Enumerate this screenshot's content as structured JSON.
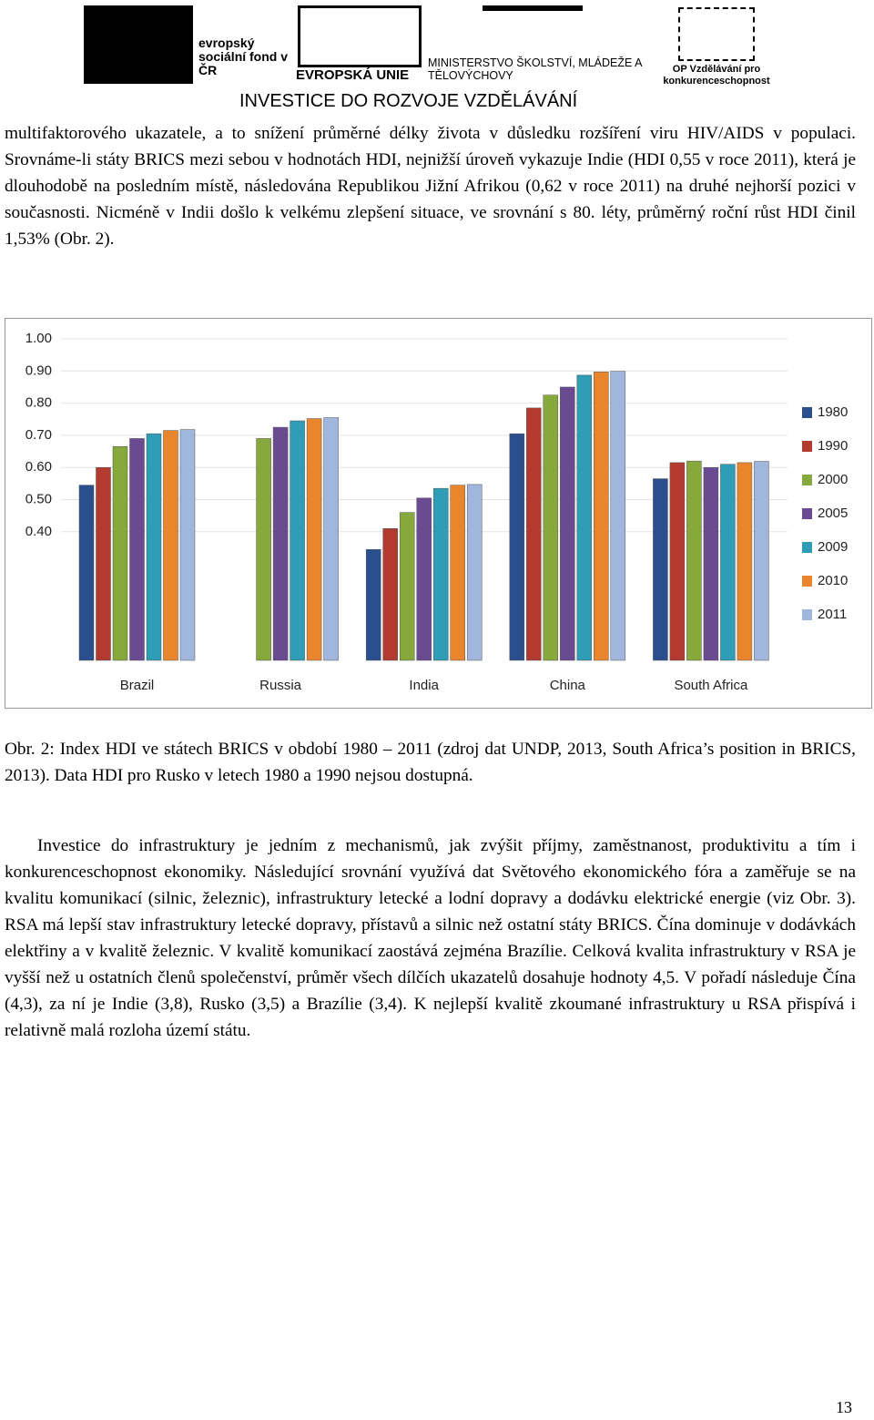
{
  "header": {
    "esf_name": "evropský sociální fond v ČR",
    "eu_name": "EVROPSKÁ UNIE",
    "msmt_name": "MINISTERSTVO ŠKOLSTVÍ, MLÁDEŽE A TĚLOVÝCHOVY",
    "op_name": "OP Vzdělávání pro konkurenceschopnost",
    "slogan": "INVESTICE DO ROZVOJE VZDĚLÁVÁNÍ"
  },
  "paragraphs_before": [
    "multifaktorového ukazatele, a to snížení průměrné délky života v důsledku rozšíření viru HIV/AIDS v populaci. Srovnáme-li státy BRICS mezi sebou v hodnotách HDI, nejnižší úroveň vykazuje Indie (HDI 0,55 v roce 2011), která je dlouhodobě na posledním místě, následována Republikou Jižní Afrikou (0,62 v roce 2011) na druhé nejhorší pozici v současnosti. Nicméně v Indii došlo k velkému zlepšení situace, ve srovnání s 80. léty, průměrný roční růst HDI činil 1,53% (Obr. 2)."
  ],
  "chart_data": {
    "type": "bar",
    "categories": [
      "Brazil",
      "Russia",
      "India",
      "China",
      "South Africa"
    ],
    "series": [
      {
        "name": "1980",
        "color": "#2b4f8c",
        "values": [
          0.545,
          null,
          0.345,
          0.705,
          0.565
        ]
      },
      {
        "name": "1990",
        "color": "#b23a2f",
        "values": [
          0.6,
          null,
          0.41,
          0.785,
          0.615
        ]
      },
      {
        "name": "2000",
        "color": "#87a83c",
        "values": [
          0.665,
          0.69,
          0.46,
          0.825,
          0.62
        ]
      },
      {
        "name": "2005",
        "color": "#6a4a90",
        "values": [
          0.69,
          0.725,
          0.505,
          0.85,
          0.6
        ]
      },
      {
        "name": "2009",
        "color": "#2f9db6",
        "values": [
          0.705,
          0.745,
          0.535,
          0.887,
          0.61
        ]
      },
      {
        "name": "2010",
        "color": "#e8852d",
        "values": [
          0.715,
          0.752,
          0.545,
          0.897,
          0.615
        ]
      },
      {
        "name": "2011",
        "color": "#a0b6dd",
        "values": [
          0.718,
          0.755,
          0.547,
          0.899,
          0.619
        ]
      }
    ],
    "ylim": [
      0,
      1
    ],
    "yticks": [
      {
        "value": 0.4,
        "label": "0.40"
      },
      {
        "value": 0.5,
        "label": "0.50"
      },
      {
        "value": 0.6,
        "label": "0.60"
      },
      {
        "value": 0.7,
        "label": "0.70"
      },
      {
        "value": 0.8,
        "label": "0.80"
      },
      {
        "value": 0.9,
        "label": "0.90"
      },
      {
        "value": 1,
        "label": "1.00"
      }
    ],
    "grid": true,
    "legend": "right"
  },
  "caption": "Obr. 2: Index HDI ve státech BRICS v období 1980 – 2011 (zdroj dat UNDP, 2013, South Africa’s position in BRICS, 2013). Data HDI pro Rusko v letech 1980 a 1990 nejsou dostupná.",
  "paragraphs_after": [
    "Investice do infrastruktury je jedním z mechanismů, jak zvýšit příjmy, zaměstnanost, produktivitu a tím i konkurenceschopnost ekonomiky. Následující srovnání využívá dat Světového ekonomického fóra a zaměřuje se na kvalitu komunikací (silnic, železnic), infrastruktury letecké a lodní dopravy a dodávku elektrické energie (viz Obr. 3). RSA má lepší stav infrastruktury letecké dopravy, přístavů a silnic než ostatní státy BRICS. Čína dominuje v dodávkách elektřiny a v kvalitě železnic. V kvalitě komunikací zaostává zejména Brazílie. Celková kvalita infrastruktury v RSA je vyšší než u ostatních členů společenství, průměr všech dílčích ukazatelů dosahuje hodnoty 4,5. V pořadí následuje Čína (4,3), za ní je Indie (3,8), Rusko (3,5) a Brazílie (3,4). K nejlepší kvalitě zkoumané infrastruktury u RSA přispívá i relativně malá rozloha území státu."
  ],
  "page_number": "13"
}
